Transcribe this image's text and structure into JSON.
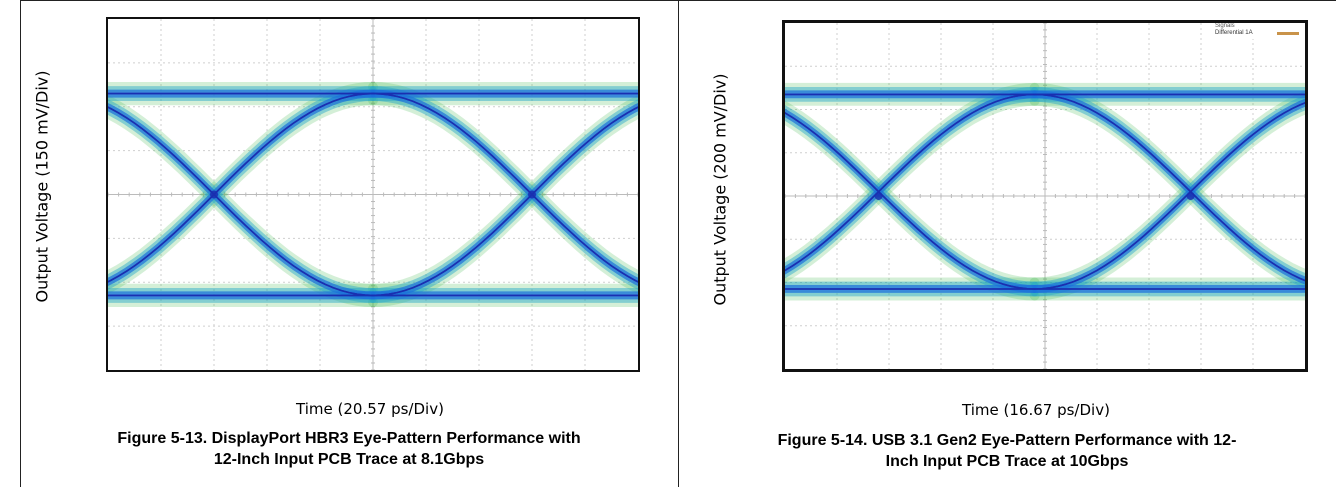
{
  "figures": [
    {
      "ylabel": "Output Voltage (150 mV/Div)",
      "xlabel": "Time (20.57 ps/Div)",
      "caption_line1": "Figure 5-13. DisplayPort HBR3 Eye-Pattern Performance with",
      "caption_line2": "12-Inch Input PCB Trace at 8.1Gbps"
    },
    {
      "ylabel": "Output Voltage (200 mV/Div)",
      "xlabel": "Time (16.67 ps/Div)",
      "caption_line1": "Figure 5-14. USB 3.1 Gen2 Eye-Pattern Performance with 12-",
      "caption_line2": "Inch Input PCB Trace at 10Gbps",
      "legend": {
        "title": "Signals",
        "entry": "Differential 1A",
        "entry_color": "#c9934a"
      }
    }
  ],
  "chart_data": [
    {
      "type": "line",
      "title": "",
      "xlabel": "Time (20.57 ps/Div)",
      "ylabel": "Output Voltage (150 mV/Div)",
      "xlim": [
        0,
        10
      ],
      "ylim": [
        -4,
        4
      ],
      "grid": true,
      "divisions": {
        "x": 10,
        "y": 8
      },
      "eye": {
        "high_level": 2.3,
        "low_level": -2.3,
        "crossings_x": [
          2.0,
          8.0
        ],
        "cross_y": 0,
        "spread": 0.3
      },
      "colors": {
        "core": "#1a2fb0",
        "mid": "#1a6fdc",
        "halo": "#21a6c8",
        "fringe": "#3bb54a"
      }
    },
    {
      "type": "line",
      "title": "",
      "xlabel": "Time (16.67 ps/Div)",
      "ylabel": "Output Voltage (200 mV/Div)",
      "xlim": [
        0,
        10
      ],
      "ylim": [
        -4,
        4
      ],
      "grid": true,
      "divisions": {
        "x": 10,
        "y": 8
      },
      "legend_position": "top-right",
      "eye": {
        "high_level": 2.35,
        "low_level": -2.15,
        "crossings_x": [
          1.8,
          7.8
        ],
        "cross_y": 0,
        "spread": 0.3
      },
      "colors": {
        "core": "#1a2fb0",
        "mid": "#1a6fdc",
        "halo": "#21a6c8",
        "fringe": "#3bb54a"
      }
    }
  ]
}
